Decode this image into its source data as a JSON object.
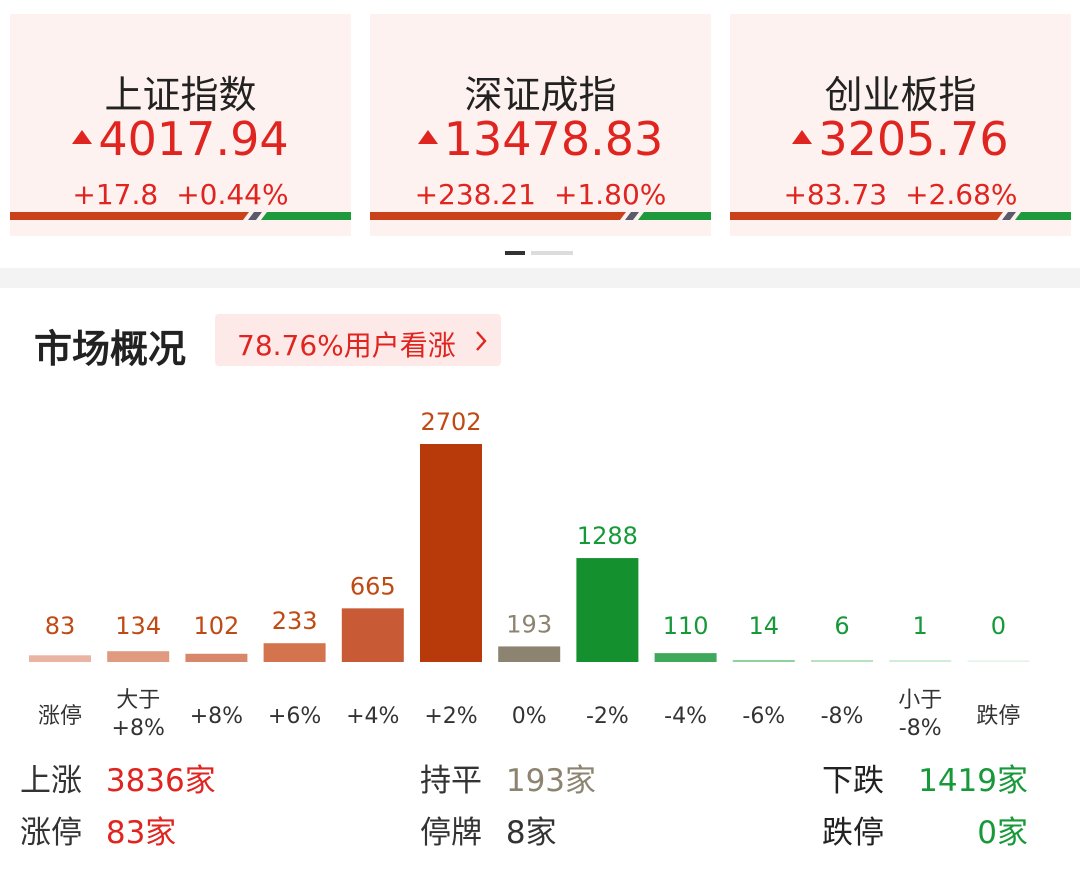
{
  "indices": [
    {
      "name": "上证指数",
      "value": "4017.94",
      "change": "+17.8",
      "pct": "+0.44%",
      "up_ratio": 0.7
    },
    {
      "name": "深证成指",
      "value": "13478.83",
      "change": "+238.21",
      "pct": "+1.80%",
      "up_ratio": 0.75
    },
    {
      "name": "创业板指",
      "value": "3205.76",
      "change": "+83.73",
      "pct": "+2.68%",
      "up_ratio": 0.8
    }
  ],
  "section": {
    "title": "市场概况",
    "sentiment_label": "78.76%用户看涨",
    "sentiment_icon": "chevron-right-icon"
  },
  "colors": {
    "up": "#e0241f",
    "down": "#17993a",
    "flat": "#8c8470"
  },
  "chart_data": {
    "type": "bar",
    "categories": [
      "涨停",
      "大于\n+8%",
      "+8%",
      "+6%",
      "+4%",
      "+2%",
      "0%",
      "-2%",
      "-4%",
      "-6%",
      "-8%",
      "小于\n-8%",
      "跌停"
    ],
    "category_lines": [
      [
        "涨停"
      ],
      [
        "大于",
        "+8%"
      ],
      [
        "+8%"
      ],
      [
        "+6%"
      ],
      [
        "+4%"
      ],
      [
        "+2%"
      ],
      [
        "0%"
      ],
      [
        "-2%"
      ],
      [
        "-4%"
      ],
      [
        "-6%"
      ],
      [
        "-8%"
      ],
      [
        "小于",
        "-8%"
      ],
      [
        "跌停"
      ]
    ],
    "values": [
      83,
      134,
      102,
      233,
      665,
      2702,
      193,
      1288,
      110,
      14,
      6,
      1,
      0
    ],
    "bar_colors": [
      "#e9b4a2",
      "#e09a80",
      "#d9876a",
      "#d4744f",
      "#c85a35",
      "#b83a0a",
      "#8c8470",
      "#15902f",
      "#3fa85b",
      "#8dd39e",
      "#b6e2c0",
      "#cfeed8",
      "#e0f3e5"
    ],
    "label_colors": [
      "#c04a14",
      "#c04a14",
      "#c04a14",
      "#c04a14",
      "#c04a14",
      "#c04a14",
      "#8c8470",
      "#17993a",
      "#17993a",
      "#17993a",
      "#17993a",
      "#17993a",
      "#17993a"
    ],
    "ylim": [
      0,
      2702
    ]
  },
  "stats": {
    "rise_label": "上涨",
    "rise_value": "3836家",
    "flat_label": "持平",
    "flat_value": "193家",
    "fall_label": "下跌",
    "fall_value": "1419家",
    "limit_up_label": "涨停",
    "limit_up_value": "83家",
    "halt_label": "停牌",
    "halt_value": "8家",
    "limit_down_label": "跌停",
    "limit_down_value": "0家"
  }
}
